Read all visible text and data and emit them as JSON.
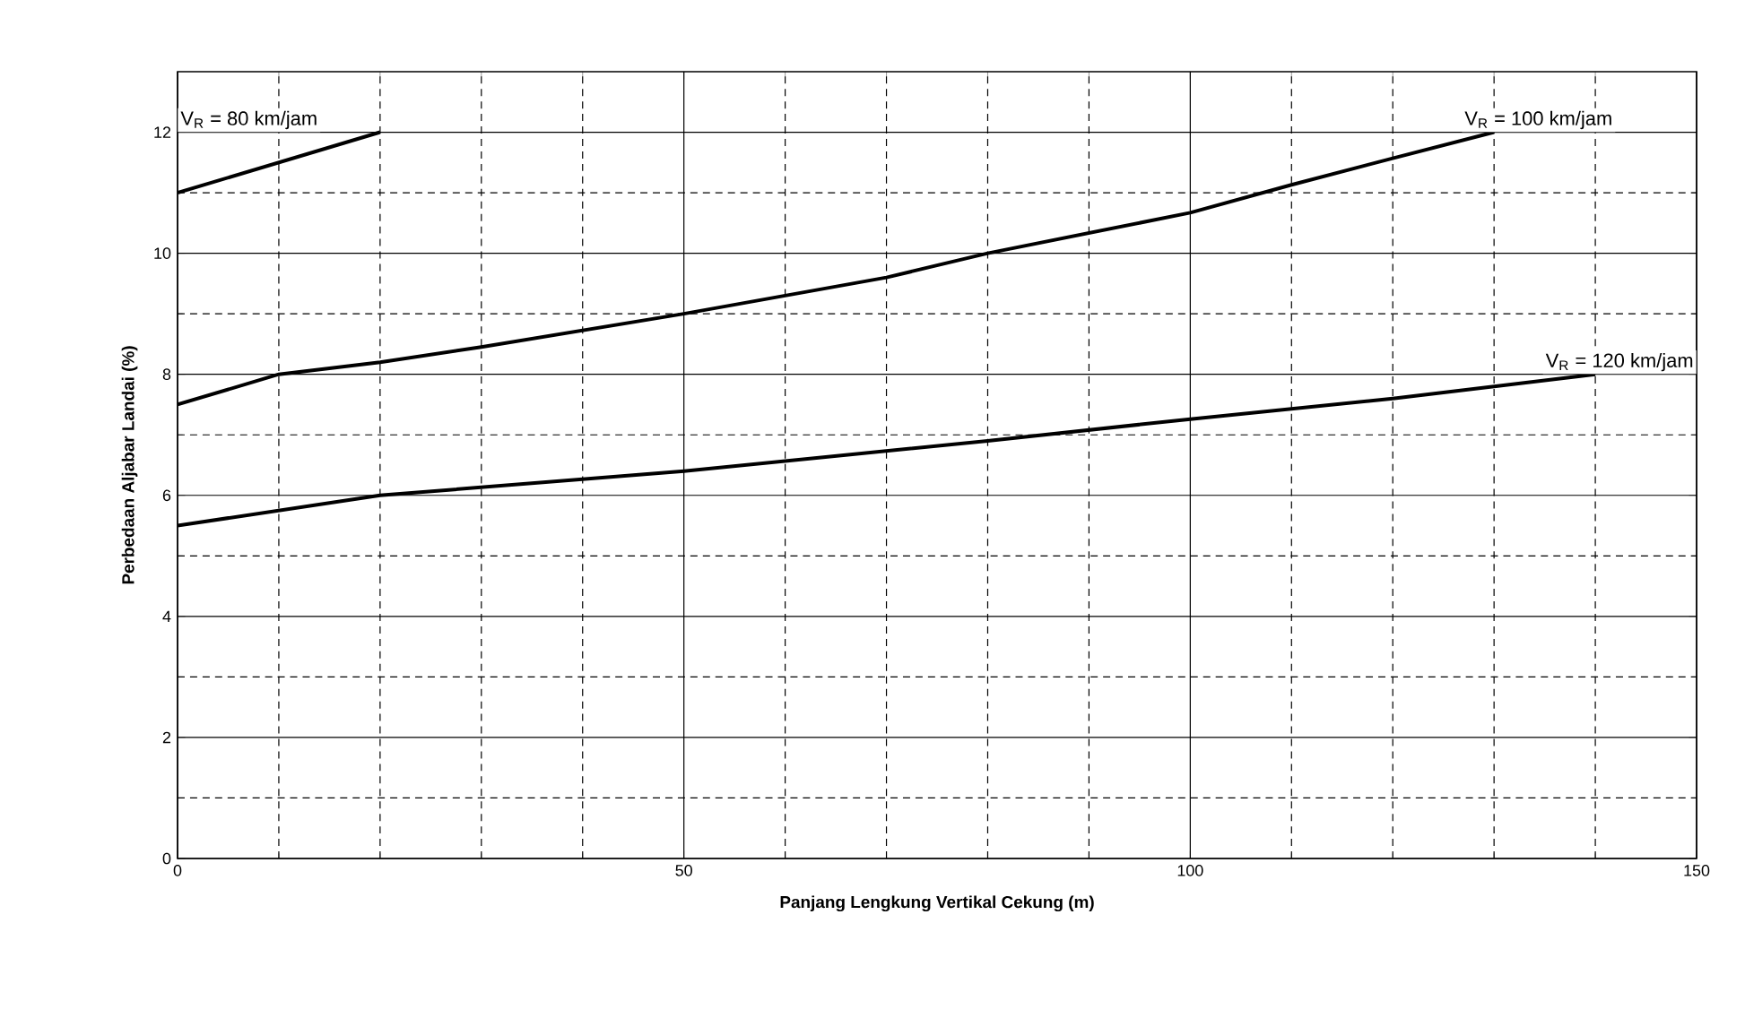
{
  "chart_data": {
    "type": "line",
    "xlabel": "Panjang Lengkung Vertikal Cekung (m)",
    "ylabel": "Perbedaan Aljabar Landai (%)",
    "xlim": [
      0,
      150
    ],
    "xticks": [
      0,
      50,
      100,
      150
    ],
    "ylim": [
      0,
      13
    ],
    "yticks": [
      0,
      2,
      4,
      6,
      8,
      10,
      12
    ],
    "grid": true,
    "marker": "none",
    "line_style": "solid",
    "series": [
      {
        "name": "V$_{R}$ = 80 km/jam",
        "color": "#000000",
        "x": [
          0,
          20
        ],
        "values": [
          11,
          12
        ]
      },
      {
        "name": "V$_{R}$ = 100 km/jam",
        "color": "#000000",
        "x": [
          0,
          10,
          20,
          30,
          50,
          70,
          80,
          100,
          110,
          120,
          130
        ],
        "values": [
          7.5,
          8,
          8.2,
          8.45,
          9,
          9.6,
          10,
          10.67,
          11.13,
          11.57,
          12
        ]
      },
      {
        "name": "V$_{R}$ = 120 km/jam",
        "color": "#000000",
        "x": [
          0,
          20,
          50,
          80,
          100,
          120,
          140
        ],
        "values": [
          5.5,
          6,
          6.4,
          6.9,
          7.26,
          7.6,
          8
        ]
      }
    ]
  }
}
